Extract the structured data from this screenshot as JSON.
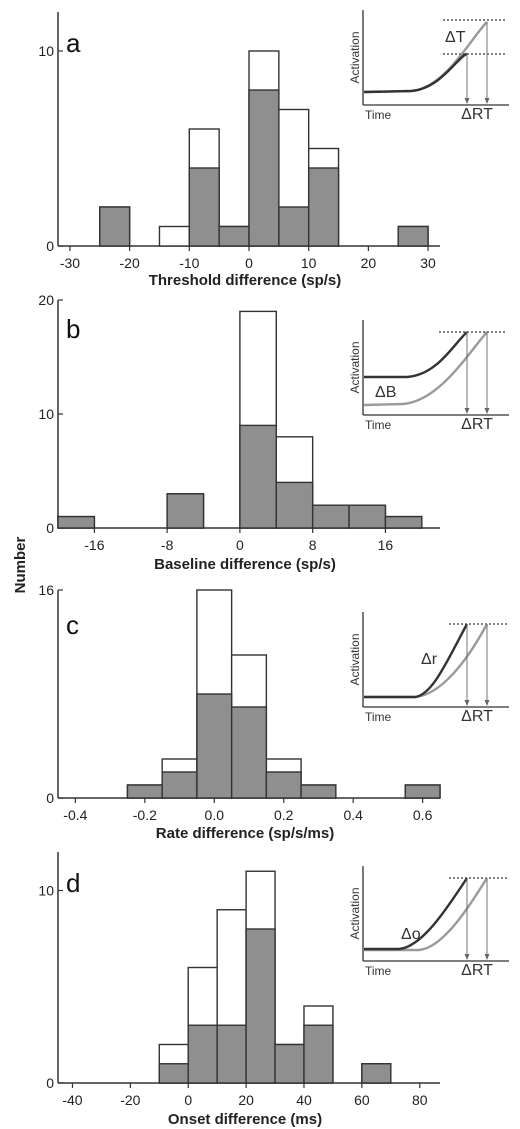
{
  "y_label": "Number",
  "chart_data": [
    {
      "type": "bar",
      "panel": "a",
      "xlabel": "Threshold difference (sp/s)",
      "bin_width": 5,
      "xlim": [
        -32,
        32
      ],
      "xticks": [
        -30,
        -20,
        -10,
        0,
        10,
        20,
        30
      ],
      "xtick_labels": [
        "-30",
        "-20",
        "-10",
        "0",
        "10",
        "20",
        "30"
      ],
      "ylim": [
        0,
        12
      ],
      "yticks": [
        0,
        10
      ],
      "series": [
        {
          "name": "total",
          "fill": "#ffffff",
          "bins": [
            [
              -22.5,
              2
            ],
            [
              -12.5,
              1
            ],
            [
              -7.5,
              6
            ],
            [
              -2.5,
              1
            ],
            [
              2.5,
              10
            ],
            [
              7.5,
              7
            ],
            [
              12.5,
              5
            ],
            [
              27.5,
              1
            ]
          ]
        },
        {
          "name": "filled",
          "fill": "#8f8f8f",
          "bins": [
            [
              -22.5,
              2
            ],
            [
              -7.5,
              4
            ],
            [
              -2.5,
              1
            ],
            [
              2.5,
              8
            ],
            [
              7.5,
              2
            ],
            [
              12.5,
              4
            ],
            [
              27.5,
              1
            ]
          ]
        }
      ],
      "inset": {
        "ylabel": "Activation",
        "xlabel": "Time",
        "rt_label": "ΔRT",
        "delta_label": "ΔT",
        "variant": "threshold"
      }
    },
    {
      "type": "bar",
      "panel": "b",
      "xlabel": "Baseline difference (sp/s)",
      "bin_width": 4,
      "xlim": [
        -20,
        22
      ],
      "xticks": [
        -16,
        -8,
        0,
        8,
        16
      ],
      "xtick_labels": [
        "-16",
        "-8",
        "0",
        "8",
        "16"
      ],
      "ylim": [
        0,
        20
      ],
      "yticks": [
        0,
        10,
        20
      ],
      "series": [
        {
          "name": "total",
          "fill": "#ffffff",
          "bins": [
            [
              -18,
              1
            ],
            [
              -6,
              3
            ],
            [
              -2,
              0
            ],
            [
              2,
              19
            ],
            [
              6,
              8
            ],
            [
              10,
              2
            ],
            [
              14,
              2
            ],
            [
              18,
              1
            ]
          ]
        },
        {
          "name": "filled",
          "fill": "#8f8f8f",
          "bins": [
            [
              -18,
              1
            ],
            [
              -6,
              3
            ],
            [
              2,
              9
            ],
            [
              6,
              4
            ],
            [
              10,
              2
            ],
            [
              14,
              2
            ],
            [
              18,
              1
            ]
          ]
        }
      ],
      "inset": {
        "ylabel": "Activation",
        "xlabel": "Time",
        "rt_label": "ΔRT",
        "delta_label": "ΔB",
        "variant": "baseline"
      }
    },
    {
      "type": "bar",
      "panel": "c",
      "xlabel": "Rate difference (sp/s/ms)",
      "bin_width": 0.1,
      "xlim": [
        -0.45,
        0.65
      ],
      "xticks": [
        -0.4,
        -0.2,
        0.0,
        0.2,
        0.4,
        0.6
      ],
      "xtick_labels": [
        "-0.4",
        "-0.2",
        "0.0",
        "0.2",
        "0.4",
        "0.6"
      ],
      "ylim": [
        0,
        16
      ],
      "yticks": [
        0,
        16
      ],
      "series": [
        {
          "name": "total",
          "fill": "#ffffff",
          "bins": [
            [
              -0.2,
              1
            ],
            [
              -0.1,
              3
            ],
            [
              0.0,
              16
            ],
            [
              0.1,
              11
            ],
            [
              0.2,
              3
            ],
            [
              0.3,
              1
            ],
            [
              0.6,
              1
            ]
          ]
        },
        {
          "name": "filled",
          "fill": "#8f8f8f",
          "bins": [
            [
              -0.2,
              1
            ],
            [
              -0.1,
              2
            ],
            [
              0.0,
              8
            ],
            [
              0.1,
              7
            ],
            [
              0.2,
              2
            ],
            [
              0.3,
              1
            ],
            [
              0.6,
              1
            ]
          ]
        }
      ],
      "inset": {
        "ylabel": "Activation",
        "xlabel": "Time",
        "rt_label": "ΔRT",
        "delta_label": "Δr",
        "variant": "rate"
      }
    },
    {
      "type": "bar",
      "panel": "d",
      "xlabel": "Onset difference (ms)",
      "bin_width": 10,
      "xlim": [
        -45,
        87
      ],
      "xticks": [
        -40,
        -20,
        0,
        20,
        40,
        60,
        80
      ],
      "xtick_labels": [
        "-40",
        "-20",
        "0",
        "20",
        "40",
        "60",
        "80"
      ],
      "ylim": [
        0,
        12
      ],
      "yticks": [
        0,
        10
      ],
      "series": [
        {
          "name": "total",
          "fill": "#ffffff",
          "bins": [
            [
              -5,
              2
            ],
            [
              5,
              6
            ],
            [
              15,
              9
            ],
            [
              25,
              11
            ],
            [
              35,
              2
            ],
            [
              45,
              4
            ],
            [
              65,
              1
            ]
          ]
        },
        {
          "name": "filled",
          "fill": "#8f8f8f",
          "bins": [
            [
              -5,
              1
            ],
            [
              5,
              3
            ],
            [
              15,
              3
            ],
            [
              25,
              8
            ],
            [
              35,
              2
            ],
            [
              45,
              3
            ],
            [
              65,
              1
            ]
          ]
        }
      ],
      "inset": {
        "ylabel": "Activation",
        "xlabel": "Time",
        "rt_label": "ΔRT",
        "delta_label": "Δo",
        "variant": "onset"
      }
    }
  ]
}
